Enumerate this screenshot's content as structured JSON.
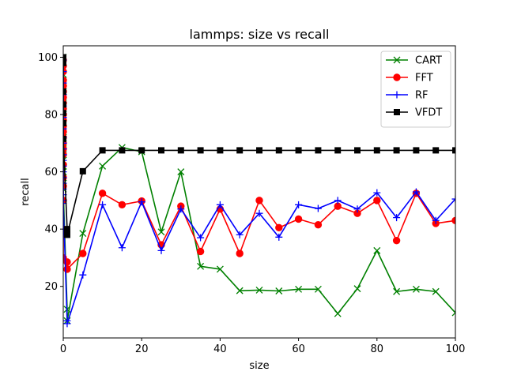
{
  "chart_data": {
    "type": "line",
    "title": "lammps: size vs recall",
    "xlabel": "size",
    "ylabel": "recall",
    "xlim": [
      0,
      100
    ],
    "ylim": [
      2,
      104
    ],
    "xticks": [
      0,
      20,
      40,
      60,
      80,
      100
    ],
    "yticks": [
      20,
      40,
      60,
      80,
      100
    ],
    "grid": false,
    "legend_position": "top-right",
    "series": [
      {
        "name": "CART",
        "color": "#008000",
        "marker": "x",
        "x": [
          0,
          0,
          0,
          0,
          0,
          0,
          0,
          0,
          0,
          0,
          0,
          0,
          0,
          0,
          0,
          0,
          0,
          0,
          0,
          0,
          0,
          0,
          0,
          0,
          1,
          1,
          5,
          10,
          15,
          20,
          25,
          30,
          35,
          40,
          45,
          50,
          55,
          60,
          65,
          70,
          75,
          80,
          85,
          90,
          95,
          100
        ],
        "y": [
          100,
          98,
          96,
          94,
          92,
          90,
          88,
          86,
          84,
          82,
          80,
          78,
          76,
          74,
          72,
          70,
          68,
          66,
          64,
          62,
          60,
          58,
          56,
          54,
          12,
          8,
          38.5,
          62,
          68.5,
          67,
          39,
          60,
          27,
          26,
          18.5,
          18.7,
          18.4,
          19,
          19,
          10.5,
          19.2,
          32.5,
          18.2,
          19,
          18.2,
          10.8
        ]
      },
      {
        "name": "FFT",
        "color": "#ff0000",
        "marker": "o",
        "x": [
          0,
          0,
          0,
          0,
          0,
          0,
          0,
          0,
          0,
          0,
          0,
          0,
          0,
          0,
          0,
          0,
          0,
          0,
          0,
          0,
          0,
          0,
          0,
          1,
          1,
          5,
          10,
          15,
          20,
          25,
          30,
          35,
          40,
          45,
          50,
          55,
          60,
          65,
          70,
          75,
          80,
          85,
          90,
          95,
          100
        ],
        "y": [
          99,
          97,
          95,
          92,
          90,
          88,
          86,
          84,
          82,
          80,
          78,
          76,
          74,
          72,
          70,
          68,
          66,
          62.5,
          58,
          55,
          50,
          40,
          30,
          28.5,
          26,
          31.5,
          52.5,
          48.5,
          49.8,
          34.5,
          48,
          32.2,
          47,
          31.5,
          50,
          40.5,
          43.5,
          41.5,
          48,
          45.5,
          50,
          36,
          52.5,
          42,
          43
        ]
      },
      {
        "name": "RF",
        "color": "#0000ff",
        "marker": "+",
        "x": [
          0,
          0,
          0,
          0,
          0,
          0,
          0,
          0,
          0,
          0,
          0,
          0,
          0,
          0,
          0,
          0,
          0,
          0,
          0,
          0,
          1,
          1,
          5,
          10,
          15,
          20,
          25,
          30,
          35,
          40,
          45,
          50,
          55,
          60,
          65,
          70,
          75,
          80,
          85,
          90,
          95,
          100
        ],
        "y": [
          99,
          95,
          91,
          87,
          83,
          79,
          75,
          72,
          70,
          68,
          66,
          64,
          62,
          60,
          58,
          56,
          54,
          52,
          50,
          49,
          8,
          7,
          24,
          48.5,
          33.5,
          49.5,
          32.5,
          47,
          37,
          48.5,
          38,
          45.5,
          37.2,
          48.5,
          47.2,
          50,
          47,
          52.7,
          44,
          53,
          43,
          50.5
        ]
      },
      {
        "name": "VFDT",
        "color": "#000000",
        "marker": "s",
        "x": [
          0,
          0,
          0,
          0,
          0,
          0,
          0,
          1,
          1,
          5,
          10,
          15,
          20,
          25,
          30,
          35,
          40,
          45,
          50,
          55,
          60,
          65,
          70,
          75,
          80,
          85,
          90,
          95,
          100
        ],
        "y": [
          100,
          98,
          88,
          83.5,
          80.5,
          77,
          71.5,
          40,
          38,
          60.2,
          67.5,
          67.5,
          67.5,
          67.5,
          67.5,
          67.5,
          67.5,
          67.5,
          67.5,
          67.5,
          67.5,
          67.5,
          67.5,
          67.5,
          67.5,
          67.5,
          67.5,
          67.5,
          67.5
        ]
      }
    ]
  }
}
